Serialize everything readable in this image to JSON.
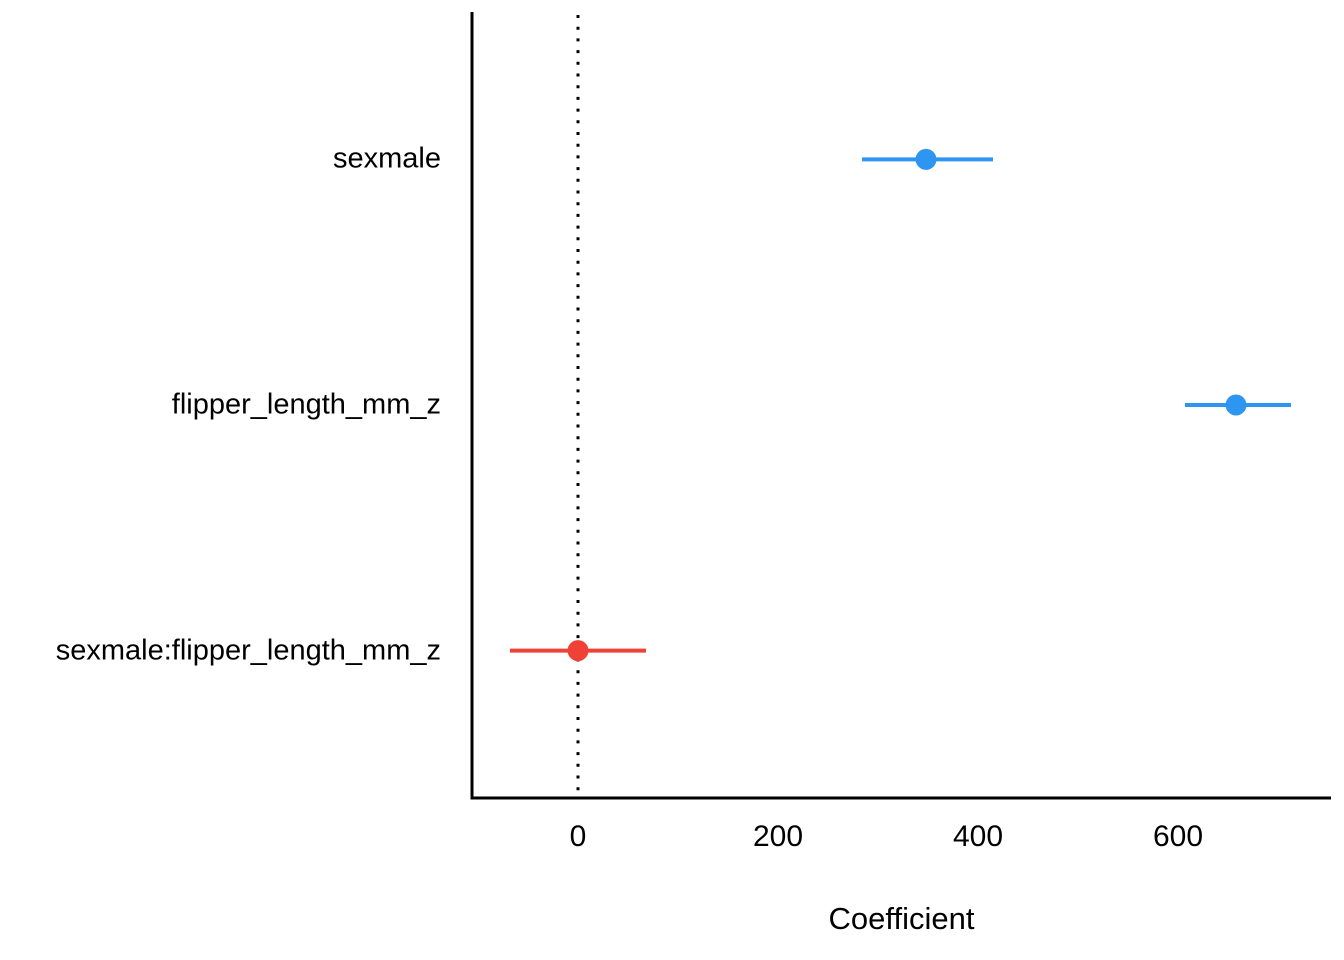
{
  "chart_data": {
    "type": "scatter",
    "subtype": "coefficient-pointrange",
    "title": "",
    "xlabel": "Coefficient",
    "ylabel": "",
    "xlim": [
      -106,
      753
    ],
    "x_ticks": {
      "values": [
        0,
        200,
        400,
        600
      ],
      "labels": [
        "0",
        "200",
        "400",
        "600"
      ]
    },
    "reference_line_x": 0,
    "grid": false,
    "legend_position": "none",
    "points": [
      {
        "term": "sexmale",
        "estimate": 348,
        "ci_low": 284,
        "ci_high": 415,
        "color": "#2E96F0"
      },
      {
        "term": "flipper_length_mm_z",
        "estimate": 658,
        "ci_low": 607,
        "ci_high": 713,
        "color": "#2E96F0"
      },
      {
        "term": "sexmale:flipper_length_mm_z",
        "estimate": 0,
        "ci_low": -68,
        "ci_high": 68,
        "color": "#F04136"
      }
    ]
  },
  "colors": {
    "significant": "#2E96F0",
    "nonsignificant": "#F04136",
    "axis": "#000000",
    "reference_line": "#000000",
    "background": "#FFFFFF",
    "text": "#000000"
  }
}
